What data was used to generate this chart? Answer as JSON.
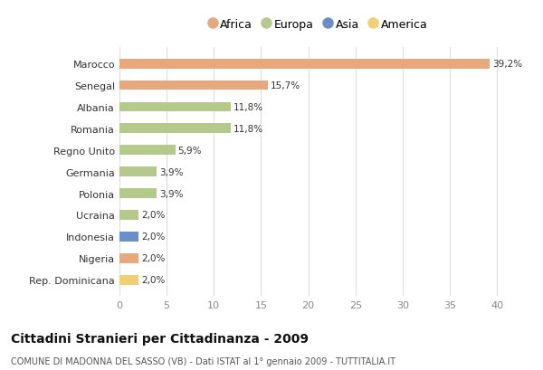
{
  "categories": [
    "Marocco",
    "Senegal",
    "Albania",
    "Romania",
    "Regno Unito",
    "Germania",
    "Polonia",
    "Ucraina",
    "Indonesia",
    "Nigeria",
    "Rep. Dominicana"
  ],
  "values": [
    39.2,
    15.7,
    11.8,
    11.8,
    5.9,
    3.9,
    3.9,
    2.0,
    2.0,
    2.0,
    2.0
  ],
  "labels": [
    "39,2%",
    "15,7%",
    "11,8%",
    "11,8%",
    "5,9%",
    "3,9%",
    "3,9%",
    "2,0%",
    "2,0%",
    "2,0%",
    "2,0%"
  ],
  "continents": [
    "Africa",
    "Africa",
    "Europa",
    "Europa",
    "Europa",
    "Europa",
    "Europa",
    "Europa",
    "Asia",
    "Africa",
    "America"
  ],
  "colors": {
    "Africa": "#E8A87C",
    "Europa": "#B5C98A",
    "Asia": "#6A8FC7",
    "America": "#F0D070"
  },
  "xlim": [
    0,
    42
  ],
  "xticks": [
    0,
    5,
    10,
    15,
    20,
    25,
    30,
    35,
    40
  ],
  "title": "Cittadini Stranieri per Cittadinanza - 2009",
  "subtitle": "COMUNE DI MADONNA DEL SASSO (VB) - Dati ISTAT al 1° gennaio 2009 - TUTTITALIA.IT",
  "background_color": "#ffffff",
  "grid_color": "#dddddd",
  "bar_height": 0.45,
  "figsize": [
    6.0,
    4.1
  ],
  "dpi": 100
}
